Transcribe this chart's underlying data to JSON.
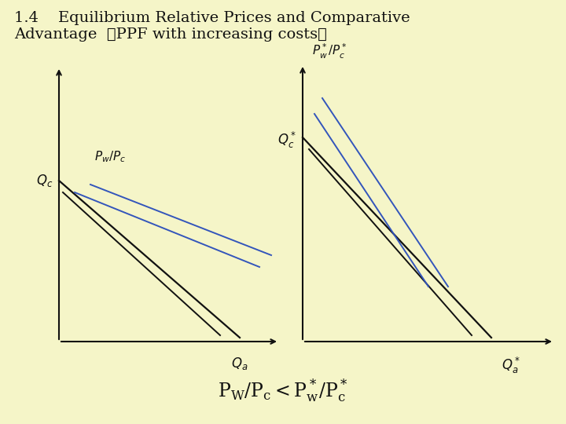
{
  "bg_color": "#f5f5c8",
  "black": "#111111",
  "blue": "#3355bb",
  "title_fs": 14,
  "label_fs": 12
}
